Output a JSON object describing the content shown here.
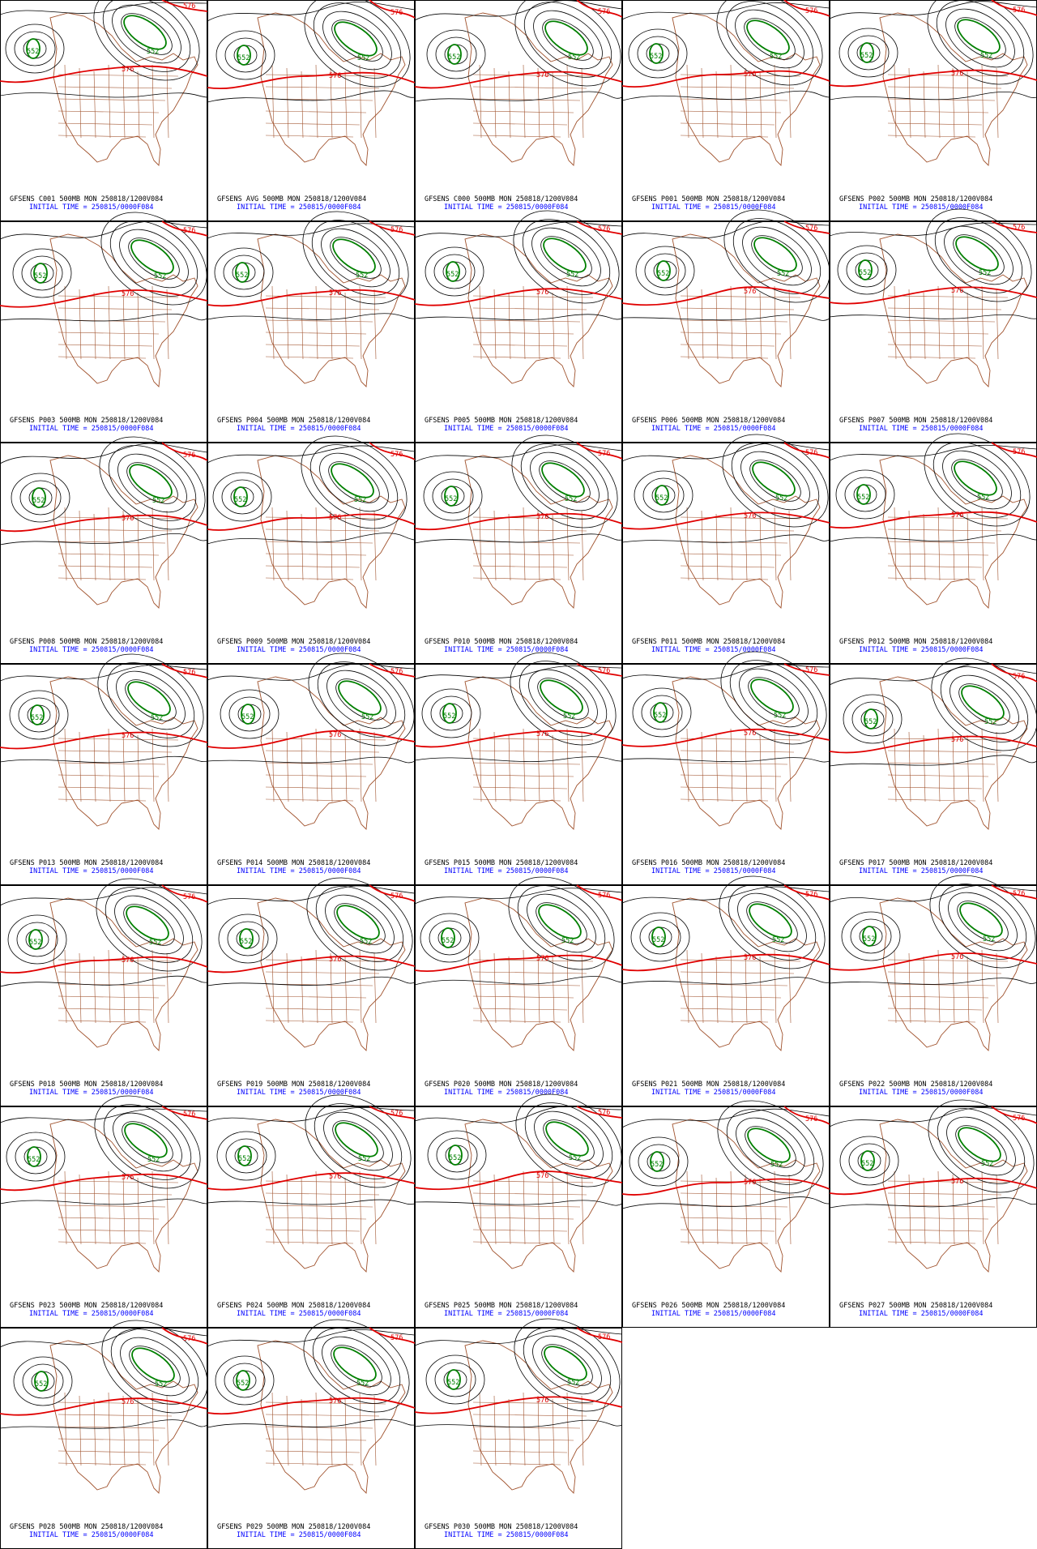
{
  "panels": [
    {
      "line1": "GFSENS C001 500MB MON 250818/1200V084",
      "line2": "INITIAL TIME = 250815/0000F084",
      "labels": [
        "552",
        "552",
        "576",
        "576"
      ]
    },
    {
      "line1": "GFSENS AVG 500MB MON 250818/1200V084",
      "line2": "INITIAL TIME = 250815/0000F084",
      "labels": [
        "552",
        "552",
        "576",
        "576"
      ]
    },
    {
      "line1": "GFSENS C000 500MB MON 250818/1200V084",
      "line2": "INITIAL TIME = 250815/0000F084",
      "labels": [
        "552",
        "552",
        "576",
        "576"
      ]
    },
    {
      "line1": "GFSENS P001 500MB MON 250818/1200V084",
      "line2": "INITIAL TIME = 250815/0000F084",
      "labels": [
        "552",
        "552",
        "576",
        "576"
      ]
    },
    {
      "line1": "GFSENS P002 500MB MON 250818/1200V084",
      "line2": "INITIAL TIME = 250815/0000F084",
      "labels": [
        "552",
        "552",
        "576",
        "576"
      ]
    },
    {
      "line1": "GFSENS P003 500MB MON 250818/1200V084",
      "line2": "INITIAL TIME = 250815/0000F084",
      "labels": [
        "552",
        "552",
        "576",
        "576"
      ]
    },
    {
      "line1": "GFSENS P004 500MB MON 250818/1200V084",
      "line2": "INITIAL TIME = 250815/0000F084",
      "labels": [
        "552",
        "552",
        "576",
        "576"
      ]
    },
    {
      "line1": "GFSENS P005 500MB MON 250818/1200V084",
      "line2": "INITIAL TIME = 250815/0000F084",
      "labels": [
        "552",
        "552",
        "576",
        "576"
      ]
    },
    {
      "line1": "GFSENS P006 500MB MON 250818/1200V084",
      "line2": "INITIAL TIME = 250815/0000F084",
      "labels": [
        "552",
        "552",
        "576",
        "576"
      ]
    },
    {
      "line1": "GFSENS P007 500MB MON 250818/1200V084",
      "line2": "INITIAL TIME = 250815/0000F084",
      "labels": [
        "552",
        "552",
        "576",
        "576"
      ]
    },
    {
      "line1": "GFSENS P008 500MB MON 250818/1200V084",
      "line2": "INITIAL TIME = 250815/0000F084",
      "labels": [
        "552",
        "552",
        "576",
        "576"
      ]
    },
    {
      "line1": "GFSENS P009 500MB MON 250818/1200V084",
      "line2": "INITIAL TIME = 250815/0000F084",
      "labels": [
        "552",
        "552",
        "576",
        "576"
      ]
    },
    {
      "line1": "GFSENS P010 500MB MON 250818/1200V084",
      "line2": "INITIAL TIME = 250815/0000F084",
      "labels": [
        "552",
        "552",
        "576",
        "576"
      ]
    },
    {
      "line1": "GFSENS P011 500MB MON 250818/1200V084",
      "line2": "INITIAL TIME = 250815/0000F084",
      "labels": [
        "552",
        "552",
        "576",
        "576"
      ]
    },
    {
      "line1": "GFSENS P012 500MB MON 250818/1200V084",
      "line2": "INITIAL TIME = 250815/0000F084",
      "labels": [
        "552",
        "552",
        "576",
        "576"
      ]
    },
    {
      "line1": "GFSENS P013 500MB MON 250818/1200V084",
      "line2": "INITIAL TIME = 250815/0000F084",
      "labels": [
        "552",
        "552",
        "576",
        "576"
      ]
    },
    {
      "line1": "GFSENS P014 500MB MON 250818/1200V084",
      "line2": "INITIAL TIME = 250815/0000F084",
      "labels": [
        "552",
        "552",
        "576",
        "576"
      ]
    },
    {
      "line1": "GFSENS P015 500MB MON 250818/1200V084",
      "line2": "INITIAL TIME = 250815/0000F084",
      "labels": [
        "552",
        "552",
        "576",
        "576"
      ]
    },
    {
      "line1": "GFSENS P016 500MB MON 250818/1200V084",
      "line2": "INITIAL TIME = 250815/0000F084",
      "labels": [
        "552",
        "552",
        "576",
        "576"
      ]
    },
    {
      "line1": "GFSENS P017 500MB MON 250818/1200V084",
      "line2": "INITIAL TIME = 250815/0000F084",
      "labels": [
        "552",
        "552",
        "576",
        "576"
      ]
    },
    {
      "line1": "GFSENS P018 500MB MON 250818/1200V084",
      "line2": "INITIAL TIME = 250815/0000F084",
      "labels": [
        "552",
        "552",
        "576",
        "576"
      ]
    },
    {
      "line1": "GFSENS P019 500MB MON 250818/1200V084",
      "line2": "INITIAL TIME = 250815/0000F084",
      "labels": [
        "552",
        "552",
        "576",
        "576"
      ]
    },
    {
      "line1": "GFSENS P020 500MB MON 250818/1200V084",
      "line2": "INITIAL TIME = 250815/0000F084",
      "labels": [
        "552",
        "552",
        "576",
        "576"
      ]
    },
    {
      "line1": "GFSENS P021 500MB MON 250818/1200V084",
      "line2": "INITIAL TIME = 250815/0000F084",
      "labels": [
        "552",
        "552",
        "576",
        "576"
      ]
    },
    {
      "line1": "GFSENS P022 500MB MON 250818/1200V084",
      "line2": "INITIAL TIME = 250815/0000F084",
      "labels": [
        "552",
        "552",
        "576",
        "576"
      ]
    },
    {
      "line1": "GFSENS P023 500MB MON 250818/1200V084",
      "line2": "INITIAL TIME = 250815/0000F084",
      "labels": [
        "552",
        "552",
        "576",
        "576"
      ]
    },
    {
      "line1": "GFSENS P024 500MB MON 250818/1200V084",
      "line2": "INITIAL TIME = 250815/0000F084",
      "labels": [
        "552",
        "552",
        "576",
        "576"
      ]
    },
    {
      "line1": "GFSENS P025 500MB MON 250818/1200V084",
      "line2": "INITIAL TIME = 250815/0000F084",
      "labels": [
        "552",
        "552",
        "576",
        "576"
      ]
    },
    {
      "line1": "GFSENS P026 500MB MON 250818/1200V084",
      "line2": "INITIAL TIME = 250815/0000F084",
      "labels": [
        "552",
        "552",
        "576",
        "576"
      ]
    },
    {
      "line1": "GFSENS P027 500MB MON 250818/1200V084",
      "line2": "INITIAL TIME = 250815/0000F084",
      "labels": [
        "552",
        "552",
        "576",
        "576"
      ]
    },
    {
      "line1": "GFSENS P028 500MB MON 250818/1200V084",
      "line2": "INITIAL TIME = 250815/0000F084",
      "labels": [
        "552",
        "552",
        "576",
        "576"
      ]
    },
    {
      "line1": "GFSENS P029 500MB MON 250818/1200V084",
      "line2": "INITIAL TIME = 250815/0000F084",
      "labels": [
        "552",
        "552",
        "576",
        "576"
      ]
    },
    {
      "line1": "GFSENS P030 500MB MON 250818/1200V084",
      "line2": "INITIAL TIME = 250815/0000F084",
      "labels": [
        "552",
        "552",
        "576",
        "576"
      ]
    }
  ]
}
